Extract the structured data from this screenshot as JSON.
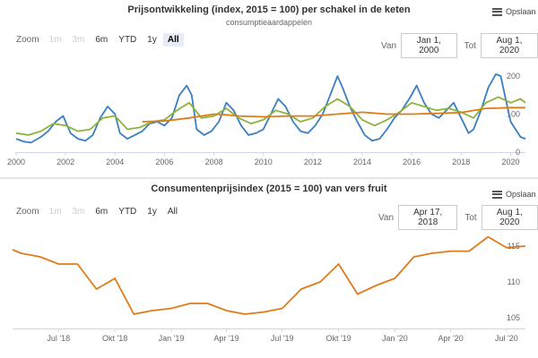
{
  "charts": [
    {
      "title": "Prijsontwikkeling (index, 2015 = 100) per schakel in de keten",
      "subtitle": "consumptieaardappelen",
      "menu_label": "Opslaan",
      "zoom_label": "Zoom",
      "range_buttons": [
        {
          "label": "1m",
          "state": "disabled"
        },
        {
          "label": "3m",
          "state": "disabled"
        },
        {
          "label": "6m",
          "state": "normal"
        },
        {
          "label": "YTD",
          "state": "normal"
        },
        {
          "label": "1y",
          "state": "normal"
        },
        {
          "label": "All",
          "state": "selected"
        }
      ],
      "from_label": "Van",
      "from_value": "Jan 1, 2000",
      "to_label": "Tot",
      "to_value": "Aug 1, 2020"
    },
    {
      "title": "Consumentenprijsindex (2015 = 100) van vers fruit",
      "menu_label": "Opslaan",
      "zoom_label": "Zoom",
      "range_buttons": [
        {
          "label": "1m",
          "state": "disabled"
        },
        {
          "label": "3m",
          "state": "disabled"
        },
        {
          "label": "6m",
          "state": "normal"
        },
        {
          "label": "YTD",
          "state": "normal"
        },
        {
          "label": "1y",
          "state": "normal"
        },
        {
          "label": "All",
          "state": "normal"
        }
      ],
      "from_label": "Van",
      "from_value": "Apr 17, 2018",
      "to_label": "Tot",
      "to_value": "Aug 1, 2020"
    }
  ],
  "colors": {
    "blue": "#3a7fc1",
    "green": "#8db33a",
    "orange": "#e07b1a"
  },
  "chart_data": [
    {
      "type": "line",
      "title": "Prijsontwikkeling (index, 2015 = 100) per schakel in de keten",
      "subtitle": "consumptieaardappelen",
      "xlim": [
        2000,
        2020.6
      ],
      "ylim": [
        0,
        240
      ],
      "x_ticks": [
        2000,
        2002,
        2004,
        2006,
        2008,
        2010,
        2012,
        2014,
        2016,
        2018,
        2020
      ],
      "x_tick_labels": [
        "2000",
        "2002",
        "2004",
        "2006",
        "2008",
        "2010",
        "2012",
        "2014",
        "2016",
        "2018",
        "2020"
      ],
      "y_ticks": [
        0,
        100,
        200
      ],
      "y_tick_labels": [
        "0",
        "100",
        "200"
      ],
      "y_axis_side": "right",
      "grid": false,
      "series": [
        {
          "color": "#3a7fc1",
          "points": [
            [
              2000,
              35
            ],
            [
              2000.3,
              28
            ],
            [
              2000.6,
              25
            ],
            [
              2001,
              40
            ],
            [
              2001.3,
              55
            ],
            [
              2001.6,
              80
            ],
            [
              2001.9,
              95
            ],
            [
              2002.2,
              50
            ],
            [
              2002.5,
              35
            ],
            [
              2002.8,
              30
            ],
            [
              2003.1,
              45
            ],
            [
              2003.4,
              90
            ],
            [
              2003.7,
              120
            ],
            [
              2004,
              100
            ],
            [
              2004.2,
              50
            ],
            [
              2004.5,
              35
            ],
            [
              2004.8,
              45
            ],
            [
              2005.1,
              55
            ],
            [
              2005.4,
              75
            ],
            [
              2005.7,
              80
            ],
            [
              2006,
              70
            ],
            [
              2006.3,
              90
            ],
            [
              2006.6,
              150
            ],
            [
              2006.9,
              175
            ],
            [
              2007.1,
              150
            ],
            [
              2007.3,
              60
            ],
            [
              2007.6,
              45
            ],
            [
              2007.9,
              55
            ],
            [
              2008.2,
              80
            ],
            [
              2008.5,
              130
            ],
            [
              2008.8,
              110
            ],
            [
              2009.1,
              70
            ],
            [
              2009.4,
              45
            ],
            [
              2009.7,
              50
            ],
            [
              2010,
              60
            ],
            [
              2010.3,
              100
            ],
            [
              2010.6,
              140
            ],
            [
              2010.9,
              120
            ],
            [
              2011.2,
              80
            ],
            [
              2011.5,
              55
            ],
            [
              2011.8,
              50
            ],
            [
              2012.1,
              70
            ],
            [
              2012.4,
              100
            ],
            [
              2012.7,
              150
            ],
            [
              2013,
              200
            ],
            [
              2013.2,
              170
            ],
            [
              2013.5,
              120
            ],
            [
              2013.8,
              80
            ],
            [
              2014.1,
              45
            ],
            [
              2014.4,
              30
            ],
            [
              2014.7,
              35
            ],
            [
              2015,
              60
            ],
            [
              2015.3,
              90
            ],
            [
              2015.6,
              110
            ],
            [
              2015.9,
              140
            ],
            [
              2016.2,
              175
            ],
            [
              2016.5,
              130
            ],
            [
              2016.8,
              100
            ],
            [
              2017.1,
              90
            ],
            [
              2017.4,
              110
            ],
            [
              2017.7,
              130
            ],
            [
              2018,
              90
            ],
            [
              2018.3,
              50
            ],
            [
              2018.5,
              60
            ],
            [
              2018.8,
              110
            ],
            [
              2019.1,
              170
            ],
            [
              2019.4,
              205
            ],
            [
              2019.6,
              200
            ],
            [
              2019.8,
              140
            ],
            [
              2020,
              80
            ],
            [
              2020.2,
              60
            ],
            [
              2020.4,
              40
            ],
            [
              2020.6,
              35
            ]
          ]
        },
        {
          "color": "#8db33a",
          "points": [
            [
              2000,
              50
            ],
            [
              2000.5,
              45
            ],
            [
              2001,
              55
            ],
            [
              2001.5,
              75
            ],
            [
              2002,
              70
            ],
            [
              2002.5,
              55
            ],
            [
              2003,
              60
            ],
            [
              2003.5,
              90
            ],
            [
              2004,
              95
            ],
            [
              2004.5,
              60
            ],
            [
              2005,
              65
            ],
            [
              2005.5,
              80
            ],
            [
              2006,
              85
            ],
            [
              2006.5,
              110
            ],
            [
              2007,
              130
            ],
            [
              2007.5,
              90
            ],
            [
              2008,
              95
            ],
            [
              2008.5,
              115
            ],
            [
              2009,
              90
            ],
            [
              2009.5,
              75
            ],
            [
              2010,
              85
            ],
            [
              2010.5,
              110
            ],
            [
              2011,
              100
            ],
            [
              2011.5,
              80
            ],
            [
              2012,
              90
            ],
            [
              2012.5,
              120
            ],
            [
              2013,
              140
            ],
            [
              2013.5,
              120
            ],
            [
              2014,
              85
            ],
            [
              2014.5,
              70
            ],
            [
              2015,
              85
            ],
            [
              2015.5,
              105
            ],
            [
              2016,
              130
            ],
            [
              2016.5,
              120
            ],
            [
              2017,
              110
            ],
            [
              2017.5,
              115
            ],
            [
              2018,
              105
            ],
            [
              2018.5,
              90
            ],
            [
              2019,
              130
            ],
            [
              2019.5,
              145
            ],
            [
              2020,
              130
            ],
            [
              2020.4,
              140
            ],
            [
              2020.6,
              130
            ]
          ]
        },
        {
          "color": "#e07b1a",
          "points": [
            [
              2005.1,
              80
            ],
            [
              2006,
              82
            ],
            [
              2007,
              90
            ],
            [
              2008,
              100
            ],
            [
              2008.5,
              98
            ],
            [
              2009,
              95
            ],
            [
              2010,
              93
            ],
            [
              2011,
              95
            ],
            [
              2012,
              95
            ],
            [
              2013,
              100
            ],
            [
              2014,
              105
            ],
            [
              2015,
              100
            ],
            [
              2016,
              100
            ],
            [
              2017,
              102
            ],
            [
              2018,
              104
            ],
            [
              2019,
              115
            ],
            [
              2020,
              117
            ],
            [
              2020.6,
              117
            ]
          ]
        }
      ]
    },
    {
      "type": "line",
      "title": "Consumentenprijsindex (2015 = 100) van vers fruit",
      "xlim": [
        "2018-04-17",
        "2020-08-01"
      ],
      "ylim": [
        103.5,
        117.5
      ],
      "x_ticks": [
        "2018-07-01",
        "2018-10-01",
        "2019-01-01",
        "2019-04-01",
        "2019-07-01",
        "2019-10-01",
        "2020-01-01",
        "2020-04-01",
        "2020-07-01"
      ],
      "x_tick_labels": [
        "Jul '18",
        "Okt '18",
        "Jan '19",
        "Apr '19",
        "Jul '19",
        "Okt '19",
        "Jan '20",
        "Apr '20",
        "Jul '20"
      ],
      "y_ticks": [
        105,
        110,
        115
      ],
      "y_tick_labels": [
        "105",
        "110",
        "115"
      ],
      "y_axis_side": "right",
      "grid": false,
      "series": [
        {
          "color": "#e07b1a",
          "points": [
            [
              "2018-04-17",
              114.5
            ],
            [
              "2018-05-01",
              114
            ],
            [
              "2018-06-01",
              113.5
            ],
            [
              "2018-07-01",
              112.5
            ],
            [
              "2018-08-01",
              112.5
            ],
            [
              "2018-09-01",
              109
            ],
            [
              "2018-10-01",
              110.5
            ],
            [
              "2018-11-01",
              105.5
            ],
            [
              "2018-12-01",
              106
            ],
            [
              "2019-01-01",
              106.3
            ],
            [
              "2019-02-01",
              107
            ],
            [
              "2019-03-01",
              107
            ],
            [
              "2019-04-01",
              106
            ],
            [
              "2019-05-01",
              105.5
            ],
            [
              "2019-06-01",
              105.8
            ],
            [
              "2019-07-01",
              106.3
            ],
            [
              "2019-08-01",
              109
            ],
            [
              "2019-09-01",
              110
            ],
            [
              "2019-10-01",
              112.5
            ],
            [
              "2019-11-01",
              108.3
            ],
            [
              "2019-12-01",
              109.5
            ],
            [
              "2020-01-01",
              110.5
            ],
            [
              "2020-02-01",
              113.5
            ],
            [
              "2020-03-01",
              114
            ],
            [
              "2020-04-01",
              114.3
            ],
            [
              "2020-05-01",
              114.3
            ],
            [
              "2020-06-01",
              116.3
            ],
            [
              "2020-07-01",
              114.8
            ],
            [
              "2020-08-01",
              115
            ]
          ]
        }
      ]
    }
  ]
}
